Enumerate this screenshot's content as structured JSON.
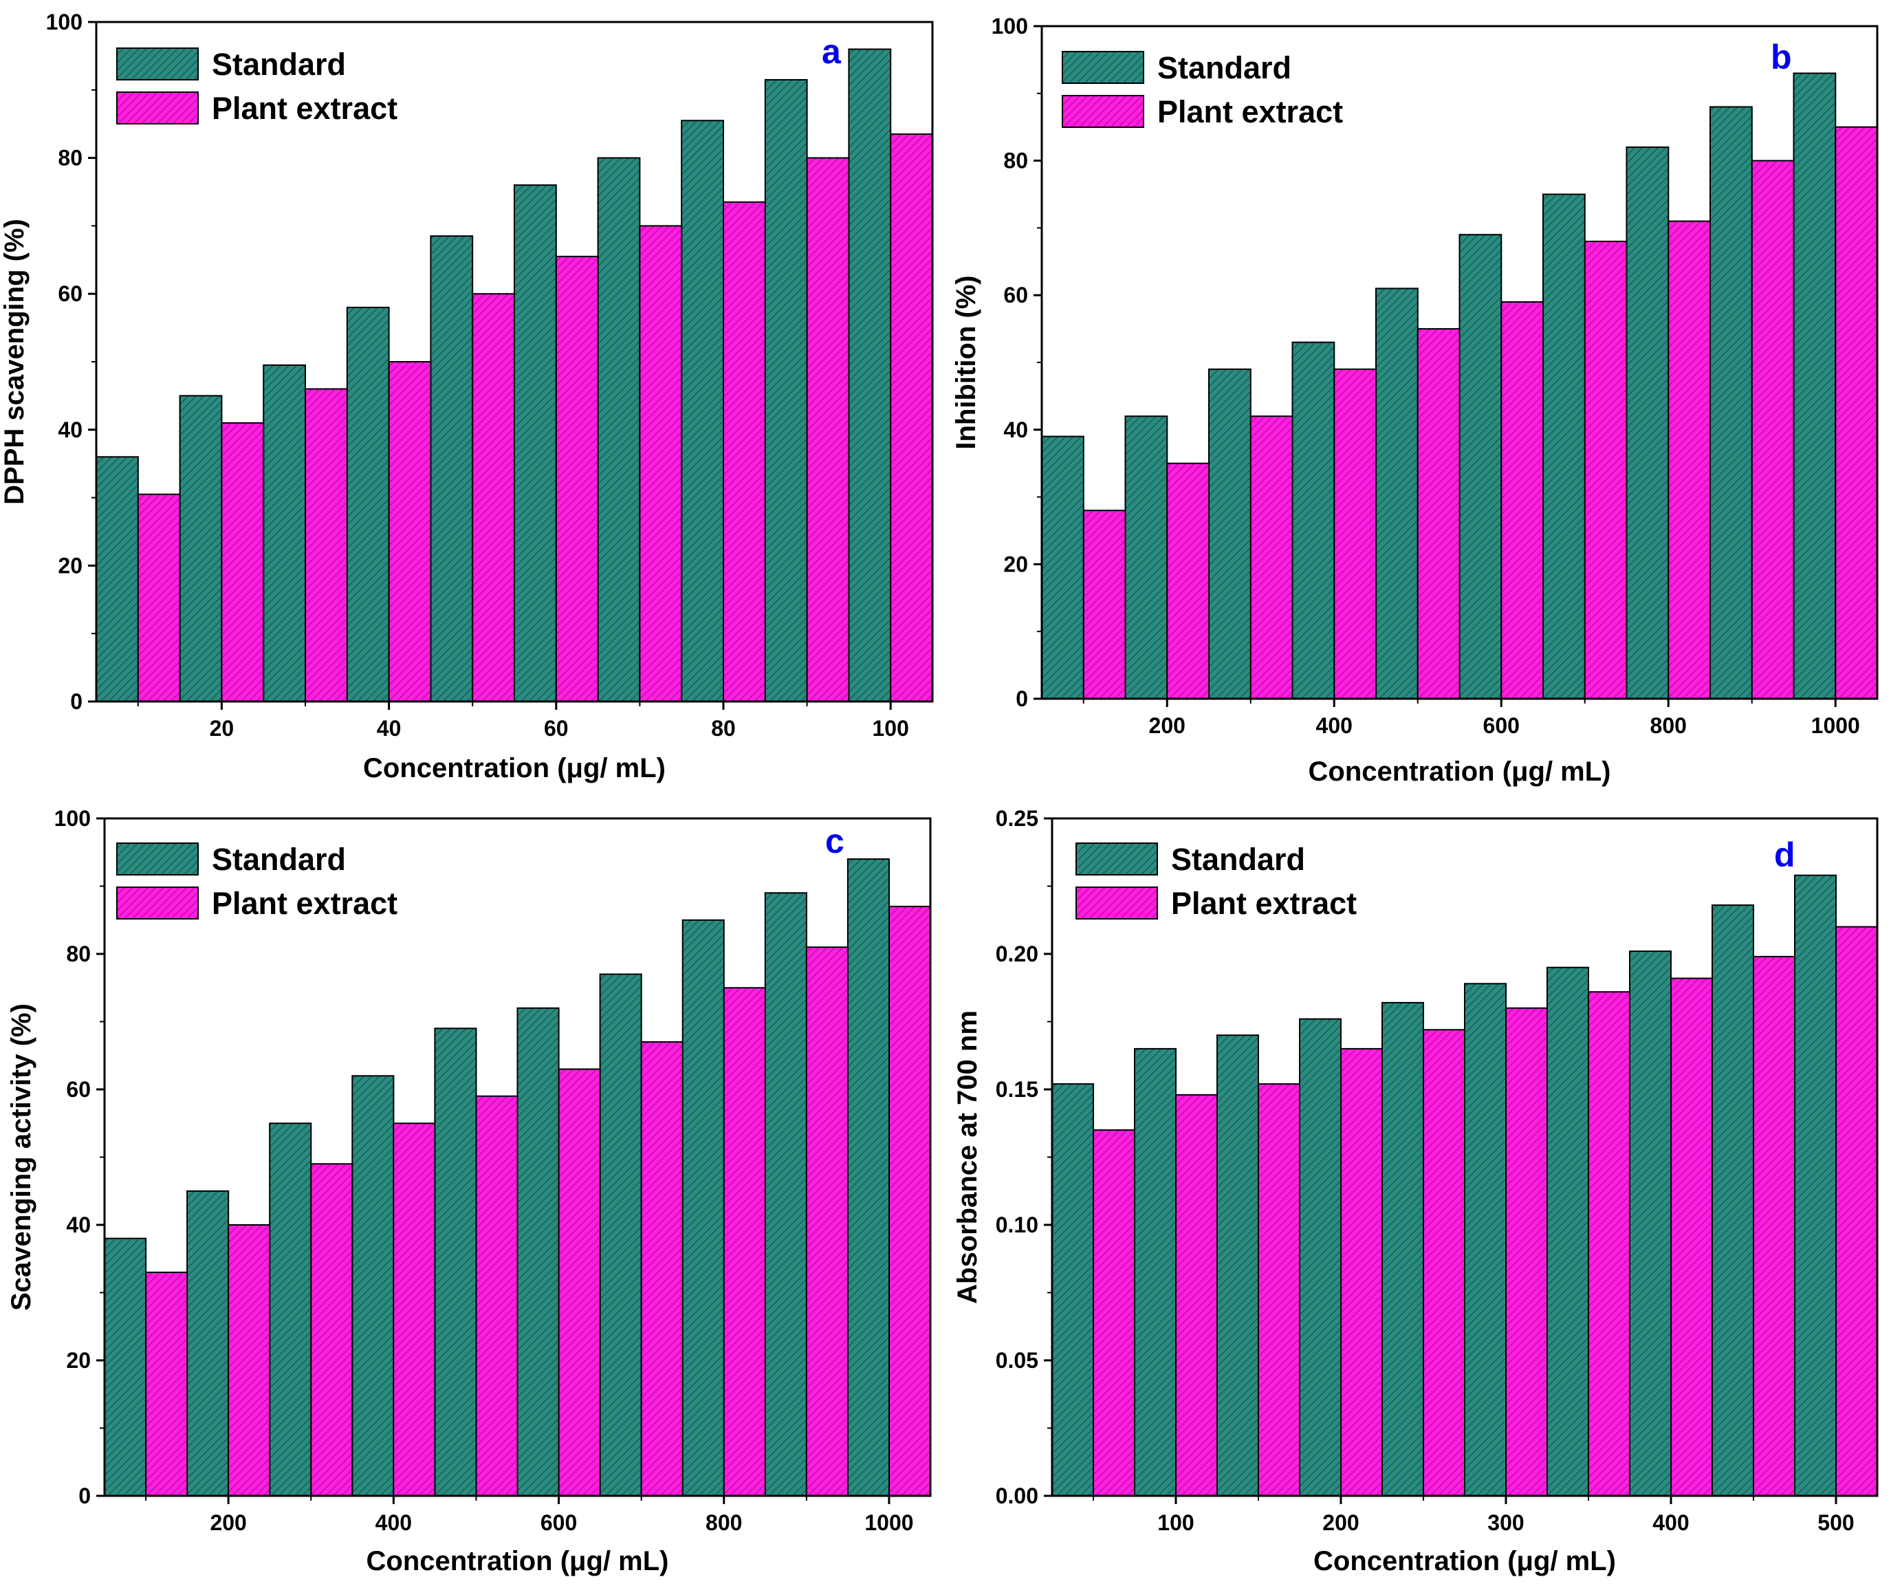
{
  "legend": {
    "standard": "Standard",
    "plant": "Plant extract"
  },
  "colors": {
    "standard": "#2a8c80",
    "plant": "#ff1fe0",
    "axis": "#000000",
    "panel_letter": "#0000ee"
  },
  "chart_data": [
    {
      "type": "bar",
      "panel": "a",
      "xlabel": "Concentration (μg/ mL)",
      "ylabel": "DPPH scavenging (%)",
      "categories": [
        10,
        20,
        30,
        40,
        50,
        60,
        70,
        80,
        90,
        100
      ],
      "x_ticks": [
        "20",
        "40",
        "60",
        "80",
        "100"
      ],
      "y_ticks": [
        "0",
        "20",
        "40",
        "60",
        "80",
        "100"
      ],
      "ylim": [
        0,
        100
      ],
      "series": [
        {
          "name": "Standard",
          "values": [
            36,
            45,
            49.5,
            58,
            68.5,
            76,
            80,
            85.5,
            91.5,
            96
          ]
        },
        {
          "name": "Plant extract",
          "values": [
            30.5,
            41,
            46,
            50,
            60,
            65.5,
            70,
            73.5,
            80,
            83.5
          ]
        }
      ]
    },
    {
      "type": "bar",
      "panel": "b",
      "xlabel": "Concentration (μg/ mL)",
      "ylabel": "Inhibition (%)",
      "categories": [
        100,
        200,
        300,
        400,
        500,
        600,
        700,
        800,
        900,
        1000
      ],
      "x_ticks": [
        "200",
        "400",
        "600",
        "800",
        "1000"
      ],
      "y_ticks": [
        "0",
        "20",
        "40",
        "60",
        "80",
        "100"
      ],
      "ylim": [
        0,
        100
      ],
      "series": [
        {
          "name": "Standard",
          "values": [
            39,
            42,
            49,
            53,
            61,
            69,
            75,
            82,
            88,
            93
          ]
        },
        {
          "name": "Plant extract",
          "values": [
            28,
            35,
            42,
            49,
            55,
            59,
            68,
            71,
            80,
            85
          ]
        }
      ]
    },
    {
      "type": "bar",
      "panel": "c",
      "xlabel": "Concentration (μg/ mL)",
      "ylabel": "Scavenging activity (%)",
      "categories": [
        100,
        200,
        300,
        400,
        500,
        600,
        700,
        800,
        900,
        1000
      ],
      "x_ticks": [
        "200",
        "400",
        "600",
        "800",
        "1000"
      ],
      "y_ticks": [
        "0",
        "20",
        "40",
        "60",
        "80",
        "100"
      ],
      "ylim": [
        0,
        100
      ],
      "series": [
        {
          "name": "Standard",
          "values": [
            38,
            45,
            55,
            62,
            69,
            72,
            77,
            85,
            89,
            94
          ]
        },
        {
          "name": "Plant extract",
          "values": [
            33,
            40,
            49,
            55,
            59,
            63,
            67,
            75,
            81,
            87
          ]
        }
      ]
    },
    {
      "type": "bar",
      "panel": "d",
      "xlabel": "Concentration (μg/ mL)",
      "ylabel": "Absorbance at 700 nm",
      "categories": [
        50,
        100,
        150,
        200,
        250,
        300,
        350,
        400,
        450,
        500
      ],
      "x_ticks": [
        "100",
        "200",
        "300",
        "400",
        "500"
      ],
      "y_ticks": [
        "0.00",
        "0.05",
        "0.10",
        "0.15",
        "0.20",
        "0.25"
      ],
      "ylim": [
        0,
        0.25
      ],
      "series": [
        {
          "name": "Standard",
          "values": [
            0.152,
            0.165,
            0.17,
            0.176,
            0.182,
            0.189,
            0.195,
            0.201,
            0.218,
            0.229
          ]
        },
        {
          "name": "Plant extract",
          "values": [
            0.135,
            0.148,
            0.152,
            0.165,
            0.172,
            0.18,
            0.186,
            0.191,
            0.199,
            0.21
          ]
        }
      ]
    }
  ]
}
